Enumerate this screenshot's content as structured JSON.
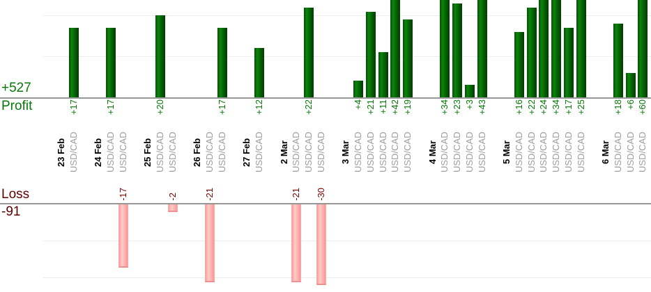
{
  "chart_data": {
    "type": "bar",
    "panels_note": "two stacked single-series bar panels sharing one category axis; top = profits, bottom = losses; tall bars clipped by visible area",
    "profit_panel": {
      "label": "Profit",
      "total": "+527",
      "gridline_values": [
        10,
        20
      ],
      "bar_color": "#0c830c",
      "text_color": "#077807"
    },
    "loss_panel": {
      "label": "Loss",
      "total": "-91",
      "gridline_values": [
        -10,
        -20
      ],
      "bar_color": "#ffadad",
      "text_color": "#7b0000"
    },
    "groups": [
      {
        "date": "23 Feb",
        "trades": [
          {
            "symbol": "USD/CAD",
            "value": 17
          }
        ]
      },
      {
        "date": "24 Feb",
        "trades": [
          {
            "symbol": "USD/CAD",
            "value": 17
          },
          {
            "symbol": "USD/CAD",
            "value": -17
          }
        ]
      },
      {
        "date": "25 Feb",
        "trades": [
          {
            "symbol": "USD/CAD",
            "value": 20
          },
          {
            "symbol": "USD/CAD",
            "value": -2
          }
        ]
      },
      {
        "date": "26 Feb",
        "trades": [
          {
            "symbol": "USD/CAD",
            "value": -21
          },
          {
            "symbol": "USD/CAD",
            "value": 17
          }
        ]
      },
      {
        "date": "27 Feb",
        "trades": [
          {
            "symbol": "USD/CAD",
            "value": 12
          }
        ]
      },
      {
        "date": "2 Mar",
        "trades": [
          {
            "symbol": "USD/CAD",
            "value": -21
          },
          {
            "symbol": "USD/CAD",
            "value": 22
          },
          {
            "symbol": "USD/CAD",
            "value": -30
          }
        ]
      },
      {
        "date": "3 Mar",
        "trades": [
          {
            "symbol": "USD/CAD",
            "value": 4
          },
          {
            "symbol": "USD/CAD",
            "value": 21
          },
          {
            "symbol": "USD/CAD",
            "value": 11
          },
          {
            "symbol": "USD/CAD",
            "value": 42
          },
          {
            "symbol": "USD/CAD",
            "value": 19
          }
        ]
      },
      {
        "date": "4 Mar",
        "trades": [
          {
            "symbol": "USD/CAD",
            "value": 34
          },
          {
            "symbol": "USD/CAD",
            "value": 23
          },
          {
            "symbol": "USD/CAD",
            "value": 3
          },
          {
            "symbol": "USD/CAD",
            "value": 43
          }
        ]
      },
      {
        "date": "5 Mar",
        "trades": [
          {
            "symbol": "USD/CAD",
            "value": 16
          },
          {
            "symbol": "USD/CAD",
            "value": 22
          },
          {
            "symbol": "USD/CAD",
            "value": 24
          },
          {
            "symbol": "USD/CAD",
            "value": 34
          },
          {
            "symbol": "USD/CAD",
            "value": 17
          },
          {
            "symbol": "USD/CAD",
            "value": 25
          }
        ]
      },
      {
        "date": "6 Mar",
        "trades": [
          {
            "symbol": "USD/CAD",
            "value": 18
          },
          {
            "symbol": "USD/CAD",
            "value": 6
          },
          {
            "symbol": "USD/CAD",
            "value": 60
          }
        ]
      }
    ],
    "colors": {
      "date_text": "#000000",
      "symbol_text": "#9c9c9c",
      "axis_line": "#979797",
      "gridline": "#ececec",
      "background": "#ffffff"
    }
  }
}
